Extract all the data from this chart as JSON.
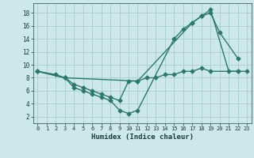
{
  "xlabel": "Humidex (Indice chaleur)",
  "line1": {
    "x": [
      0,
      2,
      3,
      11,
      17,
      18,
      19,
      21,
      22,
      23
    ],
    "y": [
      9,
      8.5,
      8,
      7.5,
      16.5,
      17.5,
      18.5,
      9,
      9,
      9
    ],
    "color": "#2a7a6a",
    "marker": "D",
    "markersize": 2.5,
    "linewidth": 1.0
  },
  "line2": {
    "x": [
      0,
      3,
      4,
      5,
      6,
      7,
      8,
      9,
      10,
      11,
      15,
      16,
      17,
      18,
      19,
      20,
      22
    ],
    "y": [
      9,
      8,
      6.5,
      6,
      5.5,
      5,
      4.5,
      3,
      2.5,
      3,
      14,
      15.5,
      16.5,
      17.5,
      18,
      15,
      11
    ],
    "color": "#2a7a6a",
    "marker": "D",
    "markersize": 2.5,
    "linewidth": 1.0
  },
  "line3": {
    "x": [
      0,
      3,
      4,
      5,
      6,
      7,
      8,
      9,
      10,
      11,
      12,
      13,
      14,
      15,
      16,
      17,
      18,
      19,
      22
    ],
    "y": [
      9,
      8,
      7,
      6.5,
      6,
      5.5,
      5,
      4.5,
      7.5,
      7.5,
      8,
      8,
      8.5,
      8.5,
      9,
      9,
      9.5,
      9,
      9
    ],
    "color": "#2a7a6a",
    "marker": "D",
    "markersize": 2.5,
    "linewidth": 1.0
  },
  "xlim": [
    -0.5,
    23.5
  ],
  "ylim": [
    1,
    19.5
  ],
  "xticks": [
    0,
    1,
    2,
    3,
    4,
    5,
    6,
    7,
    8,
    9,
    10,
    11,
    12,
    13,
    14,
    15,
    16,
    17,
    18,
    19,
    20,
    21,
    22,
    23
  ],
  "yticks": [
    2,
    4,
    6,
    8,
    10,
    12,
    14,
    16,
    18
  ],
  "background_color": "#cce8e8",
  "grid_color": "#aacccc",
  "spine_color": "#336666"
}
